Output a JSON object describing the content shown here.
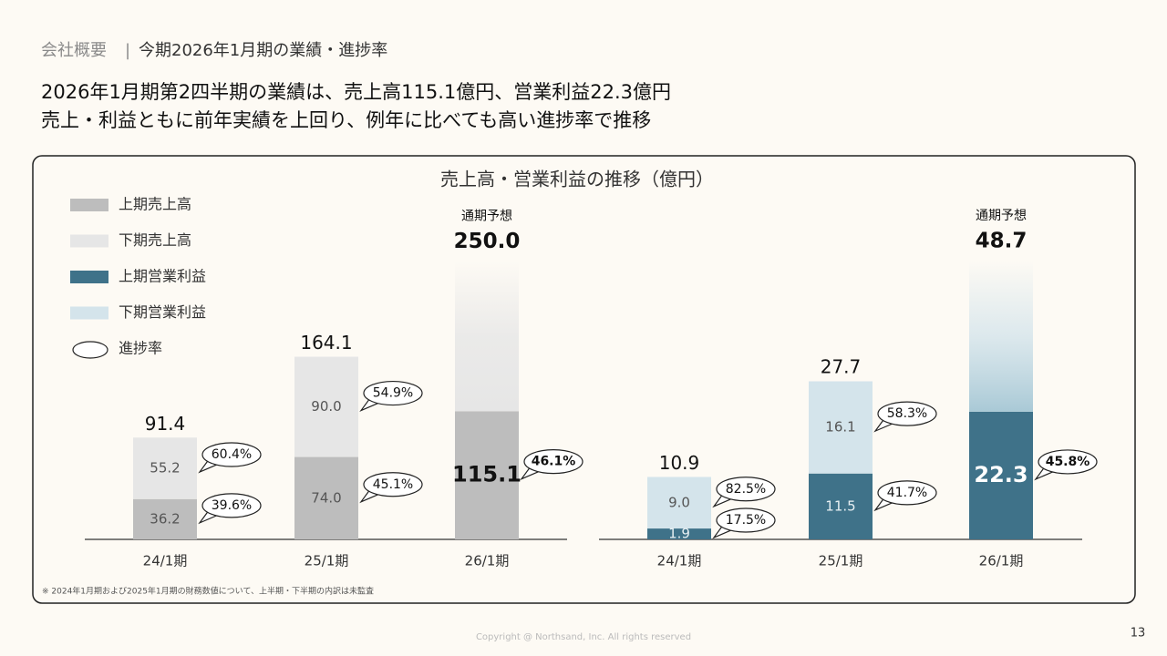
{
  "header": {
    "section": "会社概要",
    "separator": "|",
    "title": "今期2026年1月期の業績・進捗率"
  },
  "headline": [
    "2026年1月期第2四半期の業績は、売上高115.1億円、営業利益22.3億円",
    "売上・利益ともに前年実績を上回り、例年に比べても高い進捗率で推移"
  ],
  "chart_title": "売上高・営業利益の推移（億円）",
  "progress_name": "進捗率",
  "chart_data": [
    {
      "type": "bar",
      "stacked": true,
      "categories": [
        "24/1期",
        "25/1期",
        "26/1期"
      ],
      "ylim": [
        0,
        270
      ],
      "forecast_label": "通期予想",
      "series": [
        {
          "name": "上期売上高",
          "color": "#bdbdbd",
          "values": [
            36.2,
            74.0,
            115.1
          ],
          "value_labels": [
            "36.2",
            "74.0",
            "115.1"
          ],
          "progress": {
            "values": [
              39.6,
              45.1,
              46.1
            ],
            "value_labels": [
              "39.6%",
              "45.1%",
              "46.1%"
            ]
          }
        },
        {
          "name": "下期売上高",
          "color": "#e6e6e6",
          "values": [
            55.2,
            90.0,
            null
          ],
          "value_labels": [
            "55.2",
            "90.0",
            null
          ],
          "progress": {
            "values": [
              60.4,
              54.9,
              null
            ],
            "value_labels": [
              "60.4%",
              "54.9%",
              null
            ]
          }
        }
      ],
      "totals": {
        "values": [
          91.4,
          164.1,
          250.0
        ],
        "value_labels": [
          "91.4",
          "164.1",
          "250.0"
        ]
      }
    },
    {
      "type": "bar",
      "stacked": true,
      "categories": [
        "24/1期",
        "25/1期",
        "26/1期"
      ],
      "ylim": [
        0,
        52.5
      ],
      "forecast_label": "通期予想",
      "series": [
        {
          "name": "上期営業利益",
          "color": "#3f7289",
          "values": [
            1.9,
            11.5,
            22.3
          ],
          "value_labels": [
            "1.9",
            "11.5",
            "22.3"
          ],
          "progress": {
            "values": [
              17.5,
              41.7,
              45.8
            ],
            "value_labels": [
              "17.5%",
              "41.7%",
              "45.8%"
            ]
          }
        },
        {
          "name": "下期営業利益",
          "color": "#d4e4eb",
          "values": [
            9.0,
            16.1,
            null
          ],
          "value_labels": [
            "9.0",
            "16.1",
            null
          ],
          "progress": {
            "values": [
              82.5,
              58.3,
              null
            ],
            "value_labels": [
              "82.5%",
              "58.3%",
              null
            ]
          }
        }
      ],
      "totals": {
        "values": [
          10.9,
          27.7,
          48.7
        ],
        "value_labels": [
          "10.9",
          "27.7",
          "48.7"
        ]
      }
    }
  ],
  "footnote": "※ 2024年1月期および2025年1月期の財務数値について、上半期・下半期の内訳は未監査",
  "copyright": "Copyright @ Northsand, Inc. All rights reserved",
  "page_number": "13"
}
